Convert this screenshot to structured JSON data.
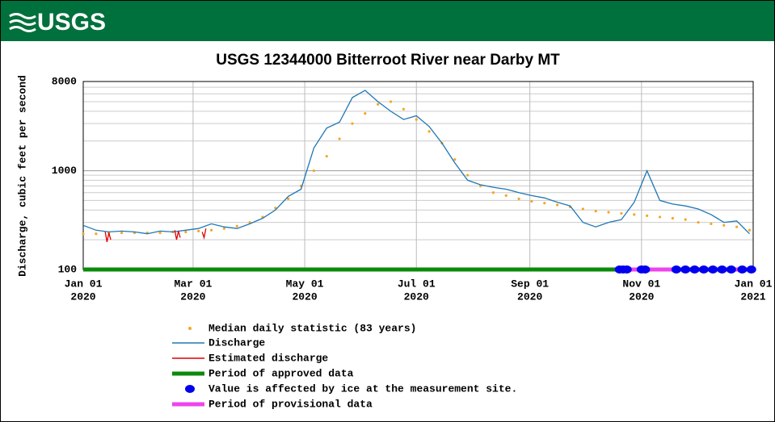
{
  "header": {
    "logo": "USGS"
  },
  "chart_data": {
    "type": "line",
    "title": "USGS 12344000 Bitterroot River near Darby MT",
    "y_label": "Discharge, cubic feet per second",
    "log_y": true,
    "ylim": [
      100,
      8000
    ],
    "yticks": [
      100,
      1000,
      8000
    ],
    "minor_yticks": [
      200,
      300,
      400,
      500,
      600,
      700,
      800,
      900,
      2000,
      3000,
      4000,
      5000,
      6000,
      7000
    ],
    "xlim": [
      "2020-01-01",
      "2021-01-01"
    ],
    "xticks": [
      {
        "value": "2020-01-01",
        "label": "Jan 01",
        "sublabel": "2020"
      },
      {
        "value": "2020-03-01",
        "label": "Mar 01",
        "sublabel": "2020"
      },
      {
        "value": "2020-05-01",
        "label": "May 01",
        "sublabel": "2020"
      },
      {
        "value": "2020-07-01",
        "label": "Jul 01",
        "sublabel": "2020"
      },
      {
        "value": "2020-09-01",
        "label": "Sep 01",
        "sublabel": "2020"
      },
      {
        "value": "2020-11-01",
        "label": "Nov 01",
        "sublabel": "2020"
      },
      {
        "value": "2021-01-01",
        "label": "Jan 01",
        "sublabel": "2021"
      }
    ],
    "grid": true,
    "x": [
      "2020-01-01",
      "2020-01-08",
      "2020-01-15",
      "2020-01-22",
      "2020-01-29",
      "2020-02-05",
      "2020-02-12",
      "2020-02-19",
      "2020-02-26",
      "2020-03-04",
      "2020-03-11",
      "2020-03-18",
      "2020-03-25",
      "2020-04-01",
      "2020-04-08",
      "2020-04-15",
      "2020-04-22",
      "2020-04-29",
      "2020-05-06",
      "2020-05-13",
      "2020-05-20",
      "2020-05-27",
      "2020-06-03",
      "2020-06-10",
      "2020-06-17",
      "2020-06-24",
      "2020-07-01",
      "2020-07-08",
      "2020-07-15",
      "2020-07-22",
      "2020-07-29",
      "2020-08-05",
      "2020-08-12",
      "2020-08-19",
      "2020-08-26",
      "2020-09-02",
      "2020-09-09",
      "2020-09-16",
      "2020-09-23",
      "2020-09-30",
      "2020-10-07",
      "2020-10-14",
      "2020-10-21",
      "2020-10-28",
      "2020-11-04",
      "2020-11-11",
      "2020-11-18",
      "2020-11-25",
      "2020-12-02",
      "2020-12-09",
      "2020-12-16",
      "2020-12-23",
      "2020-12-30"
    ],
    "series": [
      {
        "name": "Median daily statistic (83 years)",
        "color": "#f5a623",
        "style": "dots",
        "values": [
          230,
          230,
          235,
          235,
          235,
          235,
          235,
          240,
          240,
          245,
          250,
          260,
          275,
          300,
          340,
          420,
          520,
          700,
          1000,
          1400,
          2100,
          3000,
          3800,
          4700,
          5000,
          4200,
          3300,
          2500,
          1900,
          1300,
          900,
          700,
          600,
          560,
          520,
          490,
          470,
          450,
          430,
          410,
          390,
          380,
          370,
          360,
          350,
          340,
          330,
          320,
          300,
          290,
          280,
          270,
          250
        ]
      },
      {
        "name": "Discharge",
        "color": "#1f77b4",
        "style": "line",
        "values": [
          280,
          250,
          240,
          245,
          240,
          230,
          245,
          240,
          250,
          260,
          290,
          270,
          260,
          290,
          330,
          400,
          550,
          650,
          1700,
          2700,
          3100,
          5500,
          6500,
          5000,
          4000,
          3300,
          3600,
          2800,
          1900,
          1200,
          800,
          720,
          680,
          650,
          600,
          560,
          530,
          480,
          440,
          300,
          270,
          300,
          320,
          480,
          1000,
          500,
          460,
          440,
          410,
          360,
          300,
          310,
          230
        ]
      }
    ],
    "estimated": {
      "name": "Estimated discharge",
      "color": "#e00000",
      "x": [
        "2020-01-13",
        "2020-01-14",
        "2020-01-15",
        "2020-01-16",
        "2020-01-17",
        "2020-02-20",
        "2020-02-21",
        "2020-02-22",
        "2020-02-23",
        "2020-03-05",
        "2020-03-06",
        "2020-03-07",
        "2020-03-08"
      ],
      "values": [
        240,
        190,
        235,
        200,
        null,
        250,
        200,
        245,
        210,
        null,
        240,
        210,
        260
      ]
    },
    "approved": {
      "name": "Period of approved data",
      "color": "#0a8a0a",
      "range": [
        "2020-01-01",
        "2020-10-19"
      ]
    },
    "ice": {
      "name": "Value is affected by ice at the measurement site.",
      "color": "#0000ee",
      "x": [
        "2020-10-20",
        "2020-10-22",
        "2020-10-24",
        "2020-11-01",
        "2020-11-03",
        "2020-11-20",
        "2020-11-25",
        "2020-11-30",
        "2020-12-05",
        "2020-12-10",
        "2020-12-15",
        "2020-12-20",
        "2020-12-26",
        "2020-12-31"
      ]
    },
    "provisional": {
      "name": "Period of provisional data",
      "color": "#ee44ee",
      "range": [
        "2020-10-19",
        "2021-01-01"
      ]
    }
  }
}
